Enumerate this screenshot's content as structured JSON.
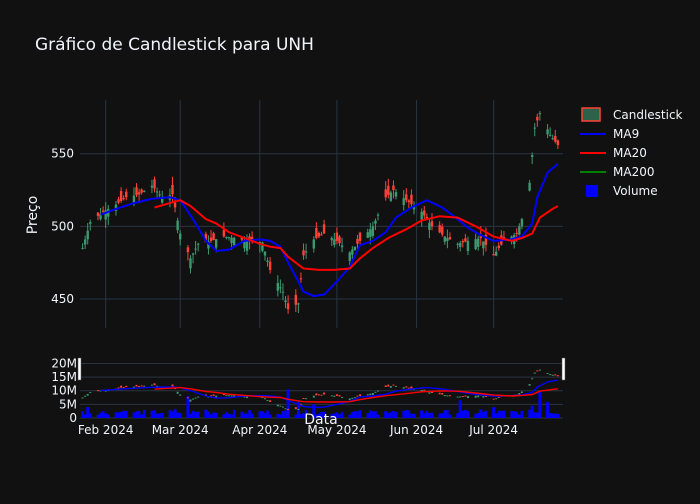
{
  "chart_data": {
    "type": "candlestick",
    "title": "Gráfico de Candlestick para UNH",
    "ylabel": "Preço",
    "xlabel": "Data",
    "colors": {
      "background": "#111111",
      "grid": "#283442",
      "text": "#f2f5fa",
      "increasing": "#3D9970",
      "decreasing": "#FF4136",
      "ma9": "#0000ff",
      "ma20": "#ff0000",
      "ma200": "#008000",
      "volume": "#0000ff"
    },
    "legend": {
      "placement": "top-right",
      "items": [
        {
          "name": "Candlestick",
          "icon": "candlestick-icon"
        },
        {
          "name": "MA9",
          "icon": "line-icon"
        },
        {
          "name": "MA20",
          "icon": "line-icon"
        },
        {
          "name": "MA200",
          "icon": "line-icon"
        },
        {
          "name": "Volume",
          "icon": "square-icon"
        }
      ]
    },
    "x_ticks": [
      {
        "label": "Feb 2024",
        "date": "2024-02-01"
      },
      {
        "label": "Mar 2024",
        "date": "2024-03-01"
      },
      {
        "label": "Apr 2024",
        "date": "2024-04-01"
      },
      {
        "label": "May 2024",
        "date": "2024-05-01"
      },
      {
        "label": "Jun 2024",
        "date": "2024-06-01"
      },
      {
        "label": "Jul 2024",
        "date": "2024-07-01"
      }
    ],
    "x_range": [
      "2024-01-22",
      "2024-07-28"
    ],
    "price_axis": {
      "ylim": [
        430,
        587
      ],
      "ticks": [
        450,
        500,
        550
      ]
    },
    "volume_axis": {
      "ylim": [
        0,
        22000000
      ],
      "ticks": [
        {
          "value": 0,
          "label": "0"
        },
        {
          "value": 5000000,
          "label": "5M"
        },
        {
          "value": 10000000,
          "label": "10M"
        },
        {
          "value": 15000000,
          "label": "15M"
        },
        {
          "value": 20000000,
          "label": "20M"
        }
      ]
    },
    "close_series": {
      "dates": [
        "2024-01-23",
        "2024-01-26",
        "2024-01-31",
        "2024-02-05",
        "2024-02-09",
        "2024-02-14",
        "2024-02-19",
        "2024-02-23",
        "2024-02-27",
        "2024-03-01",
        "2024-03-05",
        "2024-03-08",
        "2024-03-13",
        "2024-03-18",
        "2024-03-22",
        "2024-03-27",
        "2024-04-02",
        "2024-04-05",
        "2024-04-10",
        "2024-04-12",
        "2024-04-16",
        "2024-04-18",
        "2024-04-22",
        "2024-04-26",
        "2024-05-01",
        "2024-05-06",
        "2024-05-10",
        "2024-05-15",
        "2024-05-20",
        "2024-05-23",
        "2024-05-28",
        "2024-06-03",
        "2024-06-07",
        "2024-06-12",
        "2024-06-17",
        "2024-06-21",
        "2024-06-26",
        "2024-07-01",
        "2024-07-05",
        "2024-07-10",
        "2024-07-12",
        "2024-07-15",
        "2024-07-17",
        "2024-07-19",
        "2024-07-23",
        "2024-07-26"
      ],
      "close": [
        485,
        503,
        510,
        515,
        520,
        522,
        528,
        520,
        522,
        495,
        478,
        488,
        490,
        493,
        492,
        490,
        489,
        470,
        455,
        443,
        447,
        480,
        491,
        495,
        490,
        482,
        490,
        500,
        520,
        525,
        518,
        510,
        500,
        493,
        488,
        490,
        492,
        480,
        490,
        495,
        505,
        530,
        568,
        578,
        563,
        556
      ]
    },
    "series": [
      {
        "name": "MA9",
        "dates": [
          "2024-01-30",
          "2024-02-05",
          "2024-02-12",
          "2024-02-19",
          "2024-02-26",
          "2024-03-01",
          "2024-03-06",
          "2024-03-11",
          "2024-03-15",
          "2024-03-20",
          "2024-03-26",
          "2024-04-01",
          "2024-04-05",
          "2024-04-09",
          "2024-04-12",
          "2024-04-16",
          "2024-04-18",
          "2024-04-22",
          "2024-04-26",
          "2024-05-01",
          "2024-05-06",
          "2024-05-10",
          "2024-05-15",
          "2024-05-20",
          "2024-05-24",
          "2024-05-30",
          "2024-06-05",
          "2024-06-11",
          "2024-06-17",
          "2024-06-21",
          "2024-06-26",
          "2024-07-01",
          "2024-07-08",
          "2024-07-12",
          "2024-07-16",
          "2024-07-18",
          "2024-07-22",
          "2024-07-26"
        ],
        "values": [
          508,
          512,
          516,
          519,
          520,
          518,
          505,
          490,
          483,
          484,
          490,
          491,
          490,
          486,
          475,
          462,
          455,
          452,
          453,
          462,
          472,
          487,
          490,
          496,
          506,
          513,
          518,
          513,
          505,
          499,
          494,
          490,
          491,
          493,
          502,
          520,
          537,
          543
        ]
      },
      {
        "name": "MA20",
        "dates": [
          "2024-02-20",
          "2024-02-26",
          "2024-03-01",
          "2024-03-05",
          "2024-03-11",
          "2024-03-15",
          "2024-03-20",
          "2024-03-26",
          "2024-04-01",
          "2024-04-05",
          "2024-04-09",
          "2024-04-12",
          "2024-04-18",
          "2024-04-24",
          "2024-04-30",
          "2024-05-06",
          "2024-05-10",
          "2024-05-15",
          "2024-05-21",
          "2024-05-28",
          "2024-06-03",
          "2024-06-10",
          "2024-06-17",
          "2024-06-24",
          "2024-07-01",
          "2024-07-08",
          "2024-07-12",
          "2024-07-16",
          "2024-07-19",
          "2024-07-24",
          "2024-07-26"
        ],
        "values": [
          513,
          516,
          518,
          514,
          505,
          502,
          496,
          492,
          488,
          486,
          485,
          479,
          471,
          470,
          470,
          471,
          478,
          485,
          492,
          498,
          504,
          507,
          506,
          500,
          493,
          490,
          492,
          495,
          506,
          512,
          514
        ]
      },
      {
        "name": "MA200",
        "dates": [],
        "values": []
      }
    ],
    "volume": {
      "dates": [
        "2024-01-25",
        "2024-02-08",
        "2024-02-28",
        "2024-03-04",
        "2024-03-11",
        "2024-04-02",
        "2024-04-12",
        "2024-04-16",
        "2024-04-22",
        "2024-05-20",
        "2024-06-03",
        "2024-06-18",
        "2024-06-26",
        "2024-07-01",
        "2024-07-16",
        "2024-07-19",
        "2024-07-22"
      ],
      "values": [
        4000000,
        2600000,
        3200000,
        8000000,
        3000000,
        2500000,
        10500000,
        6000000,
        5000000,
        2500000,
        2800000,
        6500000,
        3200000,
        4000000,
        4500000,
        9500000,
        5800000
      ]
    },
    "grid": true
  }
}
